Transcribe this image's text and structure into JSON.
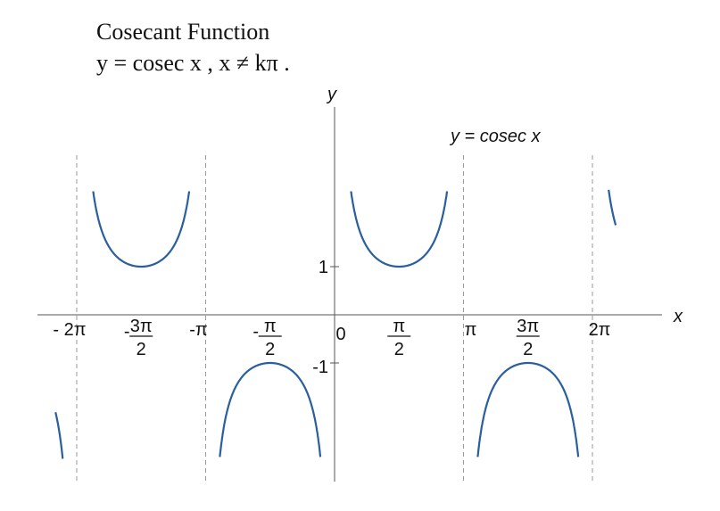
{
  "title": {
    "line1": "Cosecant Function",
    "line2": "y = cosec x ,  x ≠ kπ ."
  },
  "chart_data": {
    "type": "line",
    "function": "cosec",
    "series": [
      {
        "name": "y = cosec x"
      }
    ],
    "xlabel": "x",
    "ylabel": "y",
    "xlim": [
      -6.8,
      6.9
    ],
    "ylim": [
      -3.0,
      3.2
    ],
    "x_domain": [
      -6.8,
      6.85
    ],
    "y_clip": [
      -3.0,
      2.6
    ],
    "asymptotes": [
      -6.2832,
      -3.1416,
      0,
      3.1416,
      6.2832
    ],
    "x_ticks": [
      {
        "value": -6.2832,
        "label": "- 2π"
      },
      {
        "value": -4.7124,
        "minus": "-",
        "num": "3π",
        "den": "2"
      },
      {
        "value": -3.1416,
        "label": "-π"
      },
      {
        "value": -1.5708,
        "minus": "-",
        "num": "π",
        "den": "2"
      },
      {
        "value": 1.5708,
        "num": "π",
        "den": "2"
      },
      {
        "value": 3.1416,
        "label": "π"
      },
      {
        "value": 4.7124,
        "num": "3π",
        "den": "2"
      },
      {
        "value": 6.2832,
        "label": "2π"
      }
    ],
    "origin_label": "0",
    "y_ticks": [
      {
        "value": 1,
        "label": "1"
      },
      {
        "value": -1,
        "label": "-1"
      }
    ],
    "grid": false,
    "colors": {
      "curve": "#2a5f9e",
      "axis": "#555555",
      "asymptote": "#9a9a9a"
    }
  }
}
